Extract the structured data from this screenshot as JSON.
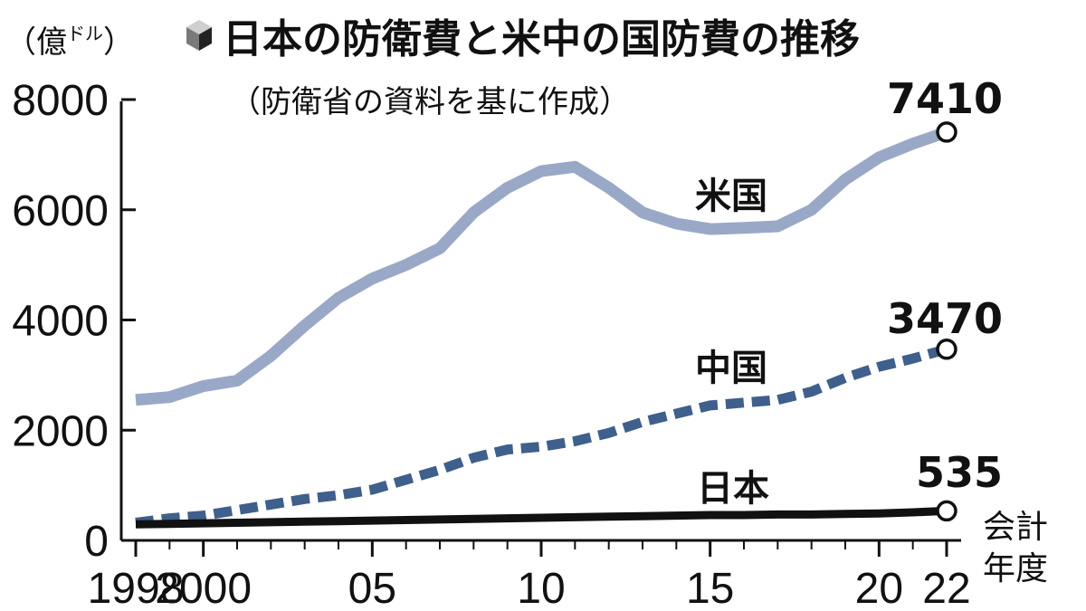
{
  "chart_data": {
    "type": "line",
    "title": "日本の防衛費と米中の国防費の推移",
    "subtitle": "（防衛省の資料を基に作成）",
    "ylabel": "（億ドル）",
    "ylabel_main": "（億",
    "ylabel_small": "ドル",
    "ylabel_close": "）",
    "xlabel_line1": "会計",
    "xlabel_line2": "年度",
    "ylim": [
      0,
      8000
    ],
    "xlim": [
      1998,
      2022
    ],
    "y_ticks": [
      "0",
      "2000",
      "4000",
      "6000",
      "8000"
    ],
    "y_tick_values": [
      0,
      2000,
      4000,
      6000,
      8000
    ],
    "x_tick_labels": [
      "1998",
      "2000",
      "05",
      "10",
      "15",
      "20",
      "22"
    ],
    "x_tick_values": [
      1998,
      2000,
      2005,
      2010,
      2015,
      2020,
      2022
    ],
    "x_minor_ticks": [
      1998,
      1999,
      2000,
      2001,
      2002,
      2003,
      2004,
      2005,
      2006,
      2007,
      2008,
      2009,
      2010,
      2011,
      2012,
      2013,
      2014,
      2015,
      2016,
      2017,
      2018,
      2019,
      2020,
      2021,
      2022
    ],
    "grid": false,
    "series": [
      {
        "name": "米国",
        "color": "#9aa8c8",
        "style": "solid",
        "end_label": "7410",
        "x": [
          1998,
          1999,
          2000,
          2001,
          2002,
          2003,
          2004,
          2005,
          2006,
          2007,
          2008,
          2009,
          2010,
          2011,
          2012,
          2013,
          2014,
          2015,
          2016,
          2017,
          2018,
          2019,
          2020,
          2021,
          2022
        ],
        "values": [
          2550,
          2600,
          2800,
          2900,
          3350,
          3900,
          4400,
          4750,
          5000,
          5300,
          5950,
          6400,
          6700,
          6780,
          6400,
          5950,
          5750,
          5650,
          5670,
          5700,
          6000,
          6550,
          6950,
          7200,
          7410
        ]
      },
      {
        "name": "中国",
        "color": "#3f5f8c",
        "style": "dashed",
        "end_label": "3470",
        "x": [
          1998,
          1999,
          2000,
          2001,
          2002,
          2003,
          2004,
          2005,
          2006,
          2007,
          2008,
          2009,
          2010,
          2011,
          2012,
          2013,
          2014,
          2015,
          2016,
          2017,
          2018,
          2019,
          2020,
          2021,
          2022
        ],
        "values": [
          320,
          400,
          450,
          550,
          650,
          750,
          820,
          920,
          1100,
          1280,
          1500,
          1650,
          1700,
          1800,
          1950,
          2150,
          2300,
          2450,
          2500,
          2550,
          2700,
          2950,
          3150,
          3300,
          3470
        ]
      },
      {
        "name": "日本",
        "color": "#111111",
        "style": "solid",
        "end_label": "535",
        "x": [
          1998,
          1999,
          2000,
          2001,
          2002,
          2003,
          2004,
          2005,
          2006,
          2007,
          2008,
          2009,
          2010,
          2011,
          2012,
          2013,
          2014,
          2015,
          2016,
          2017,
          2018,
          2019,
          2020,
          2021,
          2022
        ],
        "values": [
          290,
          300,
          310,
          320,
          330,
          340,
          350,
          360,
          370,
          380,
          390,
          400,
          410,
          420,
          430,
          440,
          450,
          460,
          460,
          470,
          470,
          480,
          490,
          510,
          535
        ]
      }
    ]
  }
}
